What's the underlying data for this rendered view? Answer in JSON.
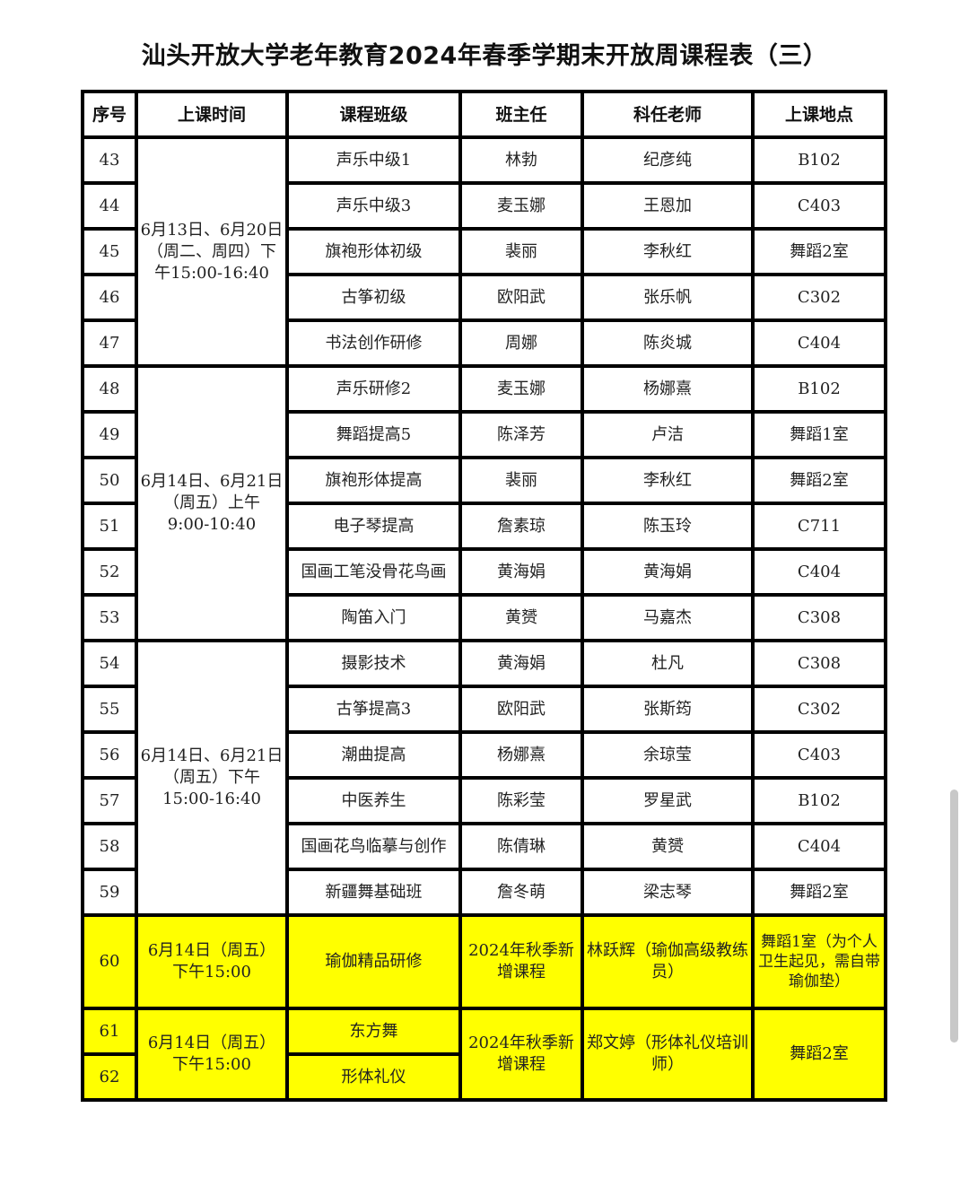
{
  "title": "汕头开放大学老年教育2024年春季学期末开放周课程表（三）",
  "headers": [
    "序号",
    "上课时间",
    "课程班级",
    "班主任",
    "科任老师",
    "上课地点"
  ],
  "groups": [
    {
      "time": "6月13日、6月20日（周二、周四）下午15:00-16:40",
      "rows": [
        {
          "no": "43",
          "course": "声乐中级1",
          "head": "林勃",
          "teacher": "纪彦纯",
          "room": "B102"
        },
        {
          "no": "44",
          "course": "声乐中级3",
          "head": "麦玉娜",
          "teacher": "王恩加",
          "room": "C403"
        },
        {
          "no": "45",
          "course": "旗袍形体初级",
          "head": "裴丽",
          "teacher": "李秋红",
          "room": "舞蹈2室"
        },
        {
          "no": "46",
          "course": "古筝初级",
          "head": "欧阳武",
          "teacher": "张乐帆",
          "room": "C302"
        },
        {
          "no": "47",
          "course": "书法创作研修",
          "head": "周娜",
          "teacher": "陈炎城",
          "room": "C404"
        }
      ]
    },
    {
      "time": "6月14日、6月21日（周五）上午 9:00-10:40",
      "rows": [
        {
          "no": "48",
          "course": "声乐研修2",
          "head": "麦玉娜",
          "teacher": "杨娜熹",
          "room": "B102"
        },
        {
          "no": "49",
          "course": "舞蹈提高5",
          "head": "陈泽芳",
          "teacher": "卢洁",
          "room": "舞蹈1室"
        },
        {
          "no": "50",
          "course": "旗袍形体提高",
          "head": "裴丽",
          "teacher": "李秋红",
          "room": "舞蹈2室"
        },
        {
          "no": "51",
          "course": "电子琴提高",
          "head": "詹素琼",
          "teacher": "陈玉玲",
          "room": "C711"
        },
        {
          "no": "52",
          "course": "国画工笔没骨花鸟画",
          "head": "黄海娟",
          "teacher": "黄海娟",
          "room": "C404"
        },
        {
          "no": "53",
          "course": "陶笛入门",
          "head": "黄赟",
          "teacher": "马嘉杰",
          "room": "C308"
        }
      ]
    },
    {
      "time": "6月14日、6月21日（周五）下午 15:00-16:40",
      "rows": [
        {
          "no": "54",
          "course": "摄影技术",
          "head": "黄海娟",
          "teacher": "杜凡",
          "room": "C308"
        },
        {
          "no": "55",
          "course": "古筝提高3",
          "head": "欧阳武",
          "teacher": "张斯筠",
          "room": "C302"
        },
        {
          "no": "56",
          "course": "潮曲提高",
          "head": "杨娜熹",
          "teacher": "余琼莹",
          "room": "C403"
        },
        {
          "no": "57",
          "course": "中医养生",
          "head": "陈彩莹",
          "teacher": "罗星武",
          "room": "B102"
        },
        {
          "no": "58",
          "course": "国画花鸟临摹与创作",
          "head": "陈倩琳",
          "teacher": "黄赟",
          "room": "C404"
        },
        {
          "no": "59",
          "course": "新疆舞基础班",
          "head": "詹冬萌",
          "teacher": "梁志琴",
          "room": "舞蹈2室"
        }
      ]
    }
  ],
  "new_courses": [
    {
      "nos": [
        "60"
      ],
      "time": "6月14日（周五）下午15:00",
      "courses": [
        "瑜伽精品研修"
      ],
      "head": "2024年秋季新增课程",
      "teacher": "林跃辉（瑜伽高级教练员）",
      "room": "舞蹈1室（为个人卫生起见，需自带瑜伽垫）"
    },
    {
      "nos": [
        "61",
        "62"
      ],
      "time": "6月14日（周五）下午15:00",
      "courses": [
        "东方舞",
        "形体礼仪"
      ],
      "head": "2024年秋季新增课程",
      "teacher": "郑文婷（形体礼仪培训师）",
      "room": "舞蹈2室"
    }
  ],
  "colors": {
    "highlight": "#ffff00",
    "border": "#000000"
  }
}
